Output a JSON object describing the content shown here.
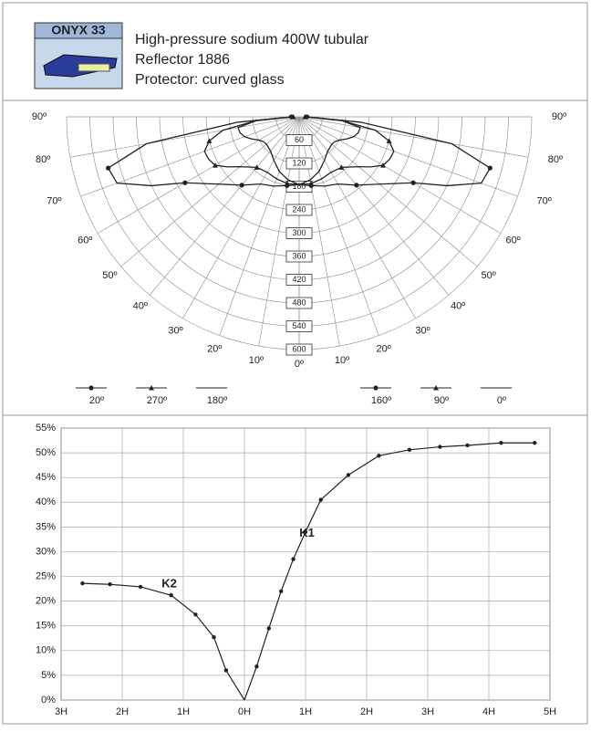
{
  "header": {
    "model": "ONYX 33",
    "lines": [
      "High-pressure sodium 400W tubular",
      "Reflector 1886",
      "Protector: curved glass"
    ]
  },
  "chart_data": [
    {
      "type": "polar",
      "rlim": [
        0,
        600
      ],
      "rticks": [
        60,
        120,
        180,
        240,
        300,
        360,
        420,
        480,
        540,
        600
      ],
      "angle_ticks": [
        {
          "value": 0,
          "label": "0º"
        },
        {
          "value": 10,
          "label": "10º"
        },
        {
          "value": 20,
          "label": "20º"
        },
        {
          "value": 30,
          "label": "30º"
        },
        {
          "value": 40,
          "label": "40º"
        },
        {
          "value": 50,
          "label": "50º"
        },
        {
          "value": 60,
          "label": "60º"
        },
        {
          "value": 70,
          "label": "70º"
        },
        {
          "value": 80,
          "label": "80º"
        },
        {
          "value": 90,
          "label": "90º"
        }
      ],
      "theta": [
        0,
        10,
        20,
        30,
        40,
        50,
        55,
        60,
        65,
        70,
        75,
        80,
        85,
        90
      ],
      "series": [
        {
          "name": "20º",
          "side": "left",
          "marker": "dot",
          "color": "#222",
          "values": [
            175,
            180,
            190,
            200,
            230,
            270,
            300,
            340,
            420,
            500,
            510,
            400,
            160,
            20
          ]
        },
        {
          "name": "270º",
          "side": "left",
          "marker": "triangle",
          "color": "#222",
          "values": [
            175,
            175,
            170,
            165,
            170,
            200,
            225,
            250,
            258,
            260,
            240,
            200,
            110,
            15
          ]
        },
        {
          "name": "180º",
          "side": "left",
          "marker": "none",
          "color": "#222",
          "values": [
            175,
            165,
            150,
            130,
            115,
            110,
            112,
            120,
            135,
            150,
            158,
            160,
            110,
            20
          ]
        },
        {
          "name": "160º",
          "side": "right",
          "marker": "dot",
          "color": "#222",
          "values": [
            175,
            180,
            190,
            200,
            230,
            270,
            300,
            340,
            420,
            500,
            510,
            400,
            160,
            20
          ]
        },
        {
          "name": "90º",
          "side": "right",
          "marker": "triangle",
          "color": "#222",
          "values": [
            175,
            175,
            170,
            165,
            170,
            200,
            225,
            250,
            258,
            260,
            240,
            200,
            110,
            15
          ]
        },
        {
          "name": "0º",
          "side": "right",
          "marker": "none",
          "color": "#222",
          "values": [
            175,
            165,
            150,
            130,
            115,
            110,
            112,
            120,
            135,
            150,
            158,
            160,
            110,
            20
          ]
        }
      ]
    },
    {
      "type": "line",
      "xlim": [
        -3,
        5
      ],
      "ylim": [
        0,
        55
      ],
      "xticks": [
        {
          "value": -3,
          "label": "3H"
        },
        {
          "value": -2,
          "label": "2H"
        },
        {
          "value": -1,
          "label": "1H"
        },
        {
          "value": 0,
          "label": "0H"
        },
        {
          "value": 1,
          "label": "1H"
        },
        {
          "value": 2,
          "label": "2H"
        },
        {
          "value": 3,
          "label": "3H"
        },
        {
          "value": 4,
          "label": "4H"
        },
        {
          "value": 5,
          "label": "5H"
        }
      ],
      "yticks": [
        {
          "value": 0,
          "label": "0%"
        },
        {
          "value": 5,
          "label": "5%"
        },
        {
          "value": 10,
          "label": "10%"
        },
        {
          "value": 15,
          "label": "15%"
        },
        {
          "value": 20,
          "label": "20%"
        },
        {
          "value": 25,
          "label": "25%"
        },
        {
          "value": 30,
          "label": "30%"
        },
        {
          "value": 35,
          "label": "35%"
        },
        {
          "value": 40,
          "label": "40%"
        },
        {
          "value": 45,
          "label": "45%"
        },
        {
          "value": 50,
          "label": "50%"
        },
        {
          "value": 55,
          "label": "55%"
        }
      ],
      "grid": true,
      "series": [
        {
          "name": "K1",
          "color": "#222",
          "x": [
            0,
            0.2,
            0.4,
            0.6,
            0.8,
            1.0,
            1.25,
            1.7,
            2.2,
            2.7,
            3.2,
            3.65,
            4.2,
            4.75
          ],
          "values": [
            0,
            6.8,
            14.5,
            22,
            28.5,
            34,
            40.5,
            45.5,
            49.4,
            50.6,
            51.2,
            51.5,
            52,
            52
          ]
        },
        {
          "name": "K2",
          "color": "#222",
          "x": [
            0,
            -0.3,
            -0.5,
            -0.8,
            -1.2,
            -1.7,
            -2.2,
            -2.65
          ],
          "values": [
            0,
            6,
            12.7,
            17.3,
            21.2,
            22.9,
            23.4,
            23.6
          ]
        }
      ]
    }
  ]
}
